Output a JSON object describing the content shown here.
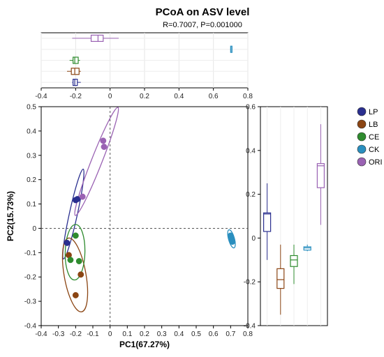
{
  "chart_data": {
    "type": "scatter",
    "title": "PCoA on ASV level",
    "subtitle": "R=0.7007, P=0.001000",
    "xlabel": "PC1(67.27%)",
    "ylabel": "PC2(15.73%)",
    "xlim": [
      -0.4,
      0.8
    ],
    "ylim": [
      -0.4,
      0.5
    ],
    "xticks": [
      "-0.4",
      "-0.3",
      "-0.2",
      "-0.1",
      "0",
      "0.1",
      "0.2",
      "0.3",
      "0.4",
      "0.5",
      "0.6",
      "0.7",
      "0.8"
    ],
    "yticks": [
      "-0.4",
      "-0.3",
      "-0.2",
      "-0.1",
      "0",
      "0.1",
      "0.2",
      "0.3",
      "0.4",
      "0.5"
    ],
    "top_xticks": [
      "-0.4",
      "-0.2",
      "0",
      "0.2",
      "0.4",
      "0.6",
      "0.8"
    ],
    "right_yticks": [
      "-0.4",
      "-0.2",
      "0",
      "0.2",
      "0.4",
      "0.6"
    ],
    "right_ylim": [
      -0.4,
      0.6
    ],
    "legend_position": "right",
    "series": [
      {
        "name": "LP",
        "color": "#2a2f8f",
        "points": [
          [
            -0.19,
            0.12
          ],
          [
            -0.2,
            0.116
          ],
          [
            -0.25,
            -0.06
          ]
        ],
        "box_pc1": {
          "min": -0.22,
          "q1": -0.215,
          "median": -0.205,
          "q3": -0.19,
          "max": -0.17
        },
        "box_pc2": {
          "min": -0.1,
          "q1": 0.03,
          "median": 0.11,
          "q3": 0.115,
          "max": 0.25
        }
      },
      {
        "name": "LB",
        "color": "#8b4513",
        "points": [
          [
            -0.2,
            -0.275
          ],
          [
            -0.17,
            -0.19
          ],
          [
            -0.24,
            -0.11
          ]
        ],
        "box_pc1": {
          "min": -0.25,
          "q1": -0.225,
          "median": -0.205,
          "q3": -0.18,
          "max": -0.17
        },
        "box_pc2": {
          "min": -0.35,
          "q1": -0.23,
          "median": -0.19,
          "q3": -0.14,
          "max": -0.03
        }
      },
      {
        "name": "CE",
        "color": "#2e8b2e",
        "points": [
          [
            -0.2,
            -0.03
          ],
          [
            -0.23,
            -0.13
          ],
          [
            -0.18,
            -0.135
          ]
        ],
        "box_pc1": {
          "min": -0.235,
          "q1": -0.215,
          "median": -0.205,
          "q3": -0.185,
          "max": -0.175
        },
        "box_pc2": {
          "min": -0.21,
          "q1": -0.13,
          "median": -0.1,
          "q3": -0.08,
          "max": -0.03
        }
      },
      {
        "name": "CK",
        "color": "#2a8fbf",
        "points": [
          [
            0.7,
            -0.03
          ],
          [
            0.705,
            -0.045
          ],
          [
            0.71,
            -0.055
          ]
        ],
        "box_pc1": {
          "min": 0.698,
          "q1": 0.7,
          "median": 0.702,
          "q3": 0.706,
          "max": 0.708
        },
        "box_pc2": {
          "min": -0.06,
          "q1": -0.055,
          "median": -0.045,
          "q3": -0.04,
          "max": -0.03
        }
      },
      {
        "name": "ORI",
        "color": "#9a62b3",
        "points": [
          [
            -0.04,
            0.36
          ],
          [
            -0.035,
            0.335
          ],
          [
            -0.16,
            0.13
          ]
        ],
        "box_pc1": {
          "min": -0.22,
          "q1": -0.11,
          "median": -0.07,
          "q3": -0.04,
          "max": 0.05
        },
        "box_pc2": {
          "min": 0.06,
          "q1": 0.23,
          "median": 0.33,
          "q3": 0.34,
          "max": 0.52
        }
      }
    ]
  }
}
